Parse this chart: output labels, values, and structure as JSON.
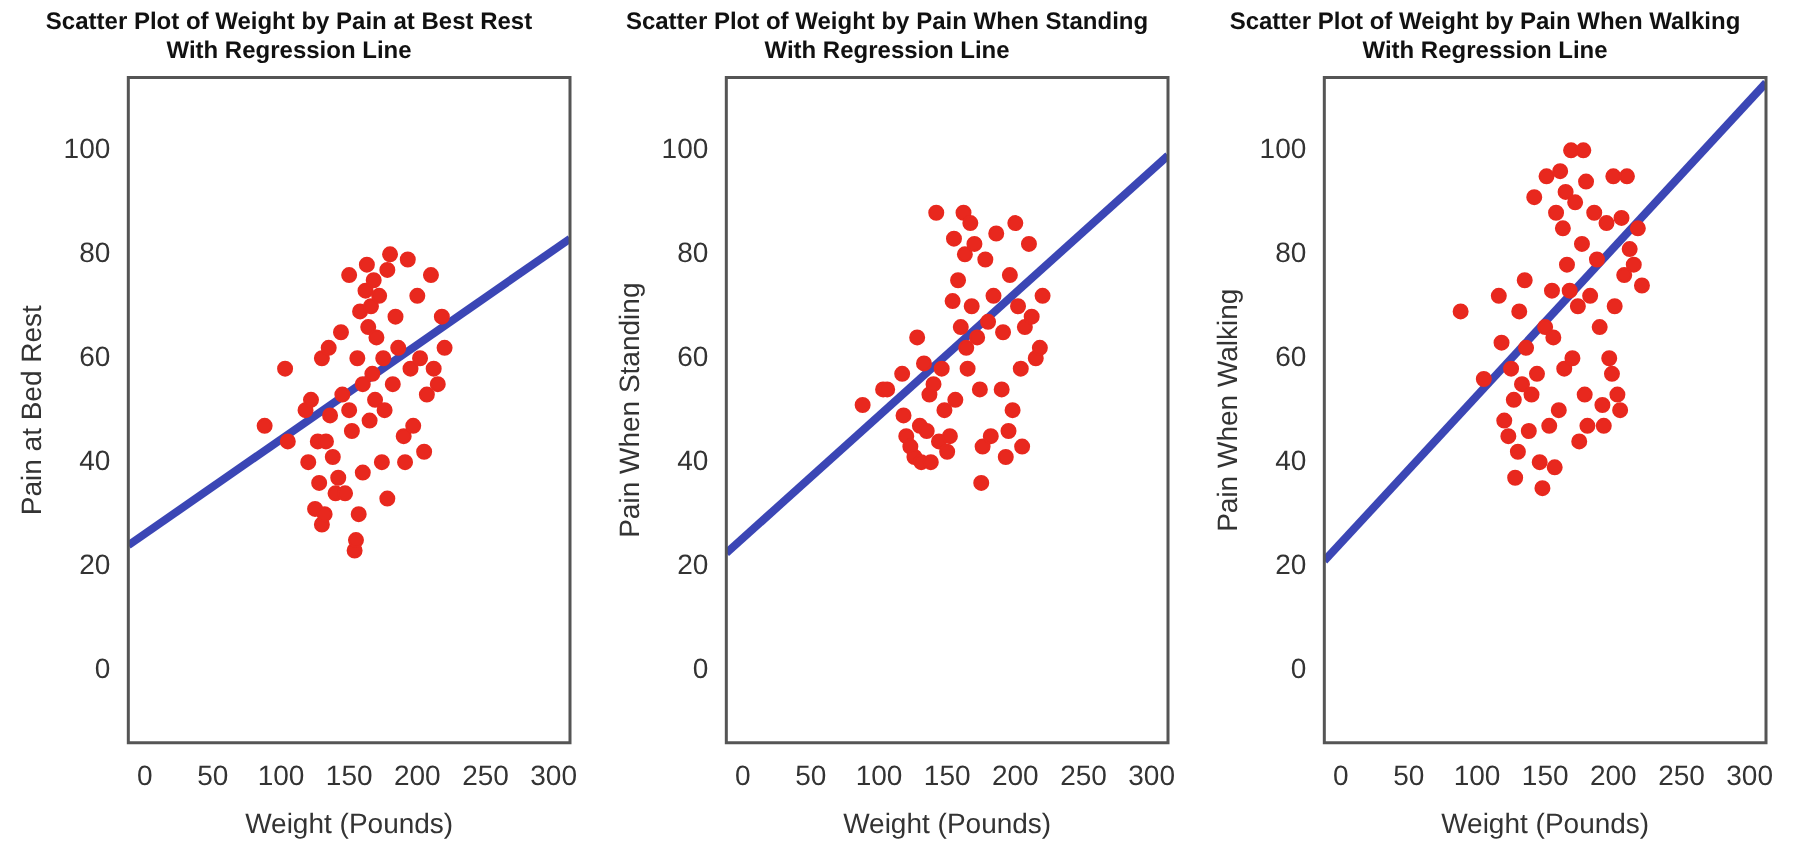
{
  "chart_data": [
    {
      "type": "scatter",
      "title": "Scatter Plot of Weight by Pain at Best Rest",
      "subtitle": "With Regression Line",
      "xlabel": "Weight (Pounds)",
      "ylabel": "Pain at Bed Rest",
      "xlim": [
        -12,
        312
      ],
      "ylim": [
        -14,
        114
      ],
      "xticks": [
        0,
        50,
        100,
        150,
        200,
        250,
        300
      ],
      "yticks": [
        0,
        20,
        40,
        60,
        80,
        100
      ],
      "series": [
        {
          "type": "scatter",
          "marker": "circle",
          "color": "#e8281e",
          "x": [
            88,
            103,
            105,
            118,
            120,
            122,
            125,
            127,
            128,
            130,
            130,
            132,
            133,
            135,
            136,
            138,
            140,
            142,
            144,
            145,
            147,
            150,
            150,
            152,
            154,
            155,
            156,
            157,
            158,
            160,
            160,
            162,
            163,
            164,
            165,
            166,
            167,
            168,
            169,
            170,
            172,
            174,
            175,
            176,
            178,
            178,
            180,
            182,
            184,
            186,
            190,
            191,
            193,
            195,
            197,
            200,
            202,
            205,
            207,
            210,
            212,
            215,
            218,
            220
          ],
          "values": [
            47,
            58,
            44,
            50,
            40,
            52,
            31,
            44,
            36,
            28,
            60,
            30,
            44,
            62,
            49,
            41,
            34,
            37,
            65,
            53,
            34,
            76,
            50,
            46,
            23,
            25,
            60,
            30,
            69,
            38,
            55,
            73,
            78,
            66,
            48,
            70,
            57,
            75,
            52,
            64,
            72,
            40,
            60,
            50,
            77,
            33,
            80,
            55,
            68,
            62,
            45,
            40,
            79,
            58,
            47,
            72,
            60,
            42,
            53,
            76,
            58,
            55,
            68,
            62
          ]
        },
        {
          "type": "line",
          "color": "#3b46b5",
          "x": [
            -12,
            312
          ],
          "values": [
            24,
            83
          ]
        }
      ]
    },
    {
      "type": "scatter",
      "title": "Scatter Plot of Weight by Pain When Standing",
      "subtitle": "With Regression Line",
      "xlabel": "Weight (Pounds)",
      "ylabel": "Pain When Standing",
      "xlim": [
        -12,
        312
      ],
      "ylim": [
        -14,
        114
      ],
      "xticks": [
        0,
        50,
        100,
        150,
        200,
        250,
        300
      ],
      "yticks": [
        0,
        20,
        40,
        60,
        80,
        100
      ],
      "series": [
        {
          "type": "scatter",
          "marker": "circle",
          "color": "#e8281e",
          "x": [
            88,
            103,
            106,
            117,
            118,
            120,
            123,
            126,
            128,
            130,
            131,
            133,
            135,
            137,
            138,
            140,
            142,
            144,
            146,
            148,
            150,
            152,
            154,
            155,
            156,
            158,
            160,
            162,
            163,
            164,
            165,
            167,
            168,
            170,
            172,
            174,
            175,
            176,
            178,
            180,
            182,
            184,
            186,
            190,
            191,
            193,
            195,
            196,
            198,
            200,
            202,
            204,
            205,
            207,
            210,
            212,
            215,
            218,
            220
          ],
          "values": [
            51,
            54,
            54,
            57,
            49,
            45,
            43,
            41,
            64,
            47,
            40,
            59,
            46,
            53,
            40,
            55,
            88,
            44,
            58,
            50,
            42,
            45,
            71,
            83,
            52,
            75,
            66,
            88,
            80,
            62,
            58,
            86,
            70,
            82,
            64,
            54,
            36,
            43,
            79,
            67,
            45,
            72,
            84,
            54,
            65,
            41,
            46,
            76,
            50,
            86,
            70,
            58,
            43,
            66,
            82,
            68,
            60,
            62,
            72
          ]
        },
        {
          "type": "line",
          "color": "#3b46b5",
          "x": [
            -12,
            312
          ],
          "values": [
            22.5,
            99
          ]
        }
      ]
    },
    {
      "type": "scatter",
      "title": "Scatter Plot of Weight by Pain When Walking",
      "subtitle": "With Regression Line",
      "xlabel": "Weight (Pounds)",
      "ylabel": "Pain When Walking",
      "xlim": [
        -12,
        312
      ],
      "ylim": [
        -14,
        114
      ],
      "xticks": [
        0,
        50,
        100,
        150,
        200,
        250,
        300
      ],
      "yticks": [
        0,
        20,
        40,
        60,
        80,
        100
      ],
      "series": [
        {
          "type": "scatter",
          "marker": "circle",
          "color": "#e8281e",
          "x": [
            88,
            105,
            116,
            118,
            120,
            123,
            125,
            127,
            128,
            130,
            131,
            133,
            135,
            136,
            138,
            140,
            142,
            144,
            146,
            148,
            150,
            151,
            153,
            155,
            156,
            157,
            158,
            160,
            161,
            163,
            164,
            165,
            166,
            168,
            169,
            170,
            172,
            174,
            175,
            177,
            178,
            179,
            180,
            181,
            183,
            186,
            188,
            190,
            192,
            193,
            195,
            197,
            199,
            200,
            201,
            203,
            205,
            206,
            208,
            210,
            212,
            215,
            218,
            221
          ],
          "values": [
            69,
            56,
            72,
            63,
            48,
            45,
            58,
            52,
            37,
            42,
            69,
            55,
            75,
            62,
            46,
            53,
            91,
            57,
            40,
            35,
            66,
            95,
            47,
            73,
            64,
            39,
            88,
            50,
            96,
            85,
            58,
            92,
            78,
            73,
            100,
            60,
            90,
            70,
            44,
            82,
            100,
            53,
            94,
            47,
            72,
            88,
            79,
            66,
            51,
            47,
            86,
            60,
            57,
            95,
            70,
            53,
            50,
            87,
            76,
            95,
            81,
            78,
            85,
            74
          ]
        },
        {
          "type": "line",
          "color": "#3b46b5",
          "x": [
            -12,
            312
          ],
          "values": [
            21,
            113
          ]
        }
      ]
    }
  ]
}
